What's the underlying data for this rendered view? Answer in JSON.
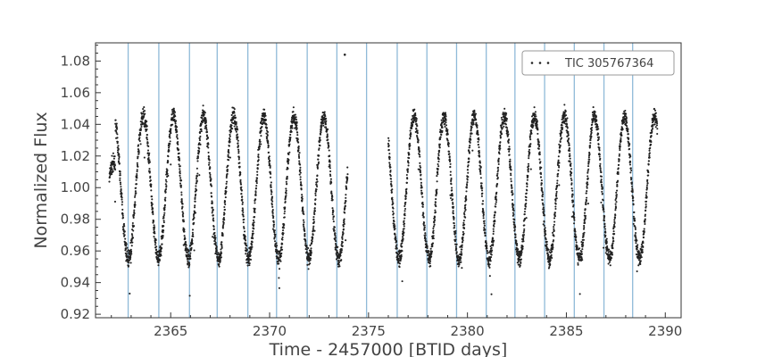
{
  "chart_data": {
    "type": "scatter",
    "xlabel": "Time - 2457000 [BTID days]",
    "ylabel": "Normalized Flux",
    "xlim": [
      2361.2,
      2390.8
    ],
    "ylim": [
      0.9178,
      0.9915
    ],
    "x_ticks": [
      2365,
      2370,
      2375,
      2380,
      2385,
      2390
    ],
    "y_ticks": [
      0.92,
      0.94,
      0.96,
      0.98,
      1.0,
      1.02,
      1.04,
      1.06,
      1.08
    ],
    "y_tick_labels": [
      "0.92",
      "0.94",
      "0.96",
      "0.98",
      "1.00",
      "1.02",
      "1.04",
      "1.06",
      "1.08"
    ],
    "legend": {
      "label": "TIC 305767364",
      "position": "top-right"
    },
    "series": [
      {
        "name": "TIC 305767364",
        "color": "#222222",
        "segments": [
          {
            "x_start": 2361.9,
            "x_end": 2373.95
          },
          {
            "x_start": 2376.0,
            "x_end": 2389.6
          }
        ],
        "period_days": 1.52,
        "mean_flux": 1.0,
        "amplitude": 0.045,
        "first_max_x": 2362.1,
        "first_max_flux": 1.015,
        "outlier": {
          "x": 2373.8,
          "y": 1.084
        }
      }
    ],
    "vertical_lines": {
      "color": "#8fbad8",
      "x": [
        2362.85,
        2364.4,
        2365.95,
        2367.35,
        2368.9,
        2370.35,
        2371.9,
        2373.4,
        2374.9,
        2376.45,
        2377.95,
        2379.45,
        2380.95,
        2382.4,
        2383.9,
        2385.4,
        2386.9,
        2388.35
      ]
    },
    "grid": false
  }
}
